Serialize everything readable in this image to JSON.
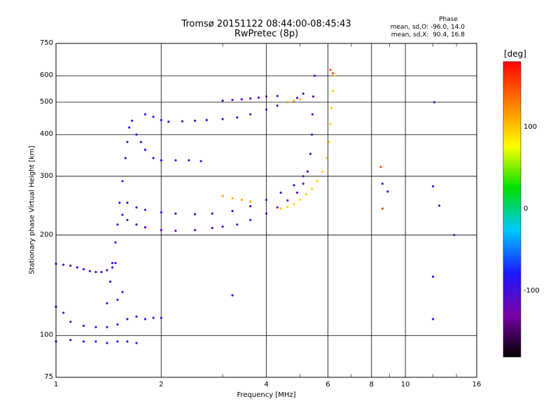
{
  "chart_data": {
    "type": "scatter",
    "title": "Tromsø 20151122 08:44:00-08:45:43",
    "subtitle": "RwPretec (8p)",
    "xlabel": "Frequency [MHz]",
    "ylabel": "Stationary phase Virtual Height [km]",
    "x_scale": "log",
    "y_scale": "log",
    "xlim": [
      1,
      16
    ],
    "ylim": [
      75,
      750
    ],
    "x_ticks": [
      1,
      2,
      4,
      6,
      8,
      10,
      16
    ],
    "x_tick_labels": [
      "1",
      "2",
      "4",
      "6",
      "8",
      "10",
      "16"
    ],
    "y_ticks": [
      75,
      100,
      200,
      300,
      400,
      500,
      600,
      750
    ],
    "y_tick_labels": [
      "75",
      "100",
      "200",
      "300",
      "400",
      "500",
      "600",
      "750"
    ],
    "grid": true,
    "colorbar": {
      "label": "[deg]",
      "range": [
        -180,
        180
      ],
      "ticks": [
        100,
        0,
        -100
      ],
      "tick_labels": [
        "100",
        "0",
        "-100"
      ],
      "colors": [
        "#000000",
        "#7a00a8",
        "#1a1aff",
        "#00c8ff",
        "#00e000",
        "#ffff00",
        "#ff8000",
        "#ff0000"
      ]
    },
    "stats": {
      "heading": "Phase",
      "o_mode": "mean, sd,O: -96.0, 14.0",
      "x_mode": "mean, sd,X:  90.4, 16.8"
    },
    "series": [
      {
        "phase": -100,
        "points": [
          [
            1.0,
            122
          ],
          [
            1.05,
            117
          ],
          [
            1.1,
            110
          ],
          [
            1.2,
            107
          ],
          [
            1.3,
            106
          ],
          [
            1.4,
            106
          ],
          [
            1.5,
            108
          ],
          [
            1.6,
            112
          ],
          [
            1.7,
            114
          ],
          [
            1.8,
            112
          ],
          [
            1.9,
            113
          ],
          [
            2.0,
            113
          ]
        ]
      },
      {
        "phase": -105,
        "points": [
          [
            1.0,
            164
          ],
          [
            1.05,
            163
          ],
          [
            1.1,
            162
          ],
          [
            1.15,
            160
          ],
          [
            1.2,
            158
          ],
          [
            1.25,
            156
          ],
          [
            1.3,
            155
          ],
          [
            1.35,
            155
          ],
          [
            1.4,
            157
          ],
          [
            1.45,
            160
          ],
          [
            1.48,
            165
          ]
        ]
      },
      {
        "phase": -100,
        "points": [
          [
            1.0,
            96
          ],
          [
            1.1,
            97
          ],
          [
            1.2,
            96
          ],
          [
            1.3,
            96
          ],
          [
            1.4,
            95
          ],
          [
            1.5,
            96
          ],
          [
            1.6,
            96
          ],
          [
            1.7,
            95
          ]
        ]
      },
      {
        "phase": -95,
        "points": [
          [
            1.4,
            125
          ],
          [
            1.43,
            145
          ],
          [
            1.45,
            165
          ],
          [
            1.48,
            190
          ],
          [
            1.5,
            215
          ],
          [
            1.52,
            250
          ],
          [
            1.55,
            290
          ],
          [
            1.58,
            340
          ],
          [
            1.6,
            380
          ],
          [
            1.62,
            420
          ],
          [
            1.65,
            440
          ],
          [
            1.7,
            400
          ],
          [
            1.75,
            380
          ],
          [
            1.8,
            360
          ],
          [
            1.9,
            340
          ],
          [
            2.0,
            335
          ],
          [
            2.2,
            335
          ],
          [
            2.4,
            335
          ],
          [
            2.6,
            333
          ]
        ]
      },
      {
        "phase": -110,
        "points": [
          [
            1.55,
            230
          ],
          [
            1.6,
            222
          ],
          [
            1.7,
            215
          ],
          [
            1.8,
            211
          ],
          [
            2.0,
            207
          ],
          [
            2.2,
            206
          ],
          [
            2.5,
            207
          ],
          [
            2.8,
            210
          ],
          [
            3.0,
            212
          ],
          [
            3.3,
            215
          ],
          [
            3.6,
            222
          ],
          [
            4.0,
            232
          ],
          [
            4.3,
            242
          ],
          [
            4.6,
            254
          ],
          [
            4.9,
            268
          ],
          [
            5.1,
            285
          ],
          [
            5.25,
            310
          ],
          [
            5.35,
            350
          ],
          [
            5.4,
            400
          ],
          [
            5.42,
            460
          ],
          [
            5.45,
            520
          ],
          [
            5.5,
            600
          ]
        ]
      },
      {
        "phase": -100,
        "points": [
          [
            1.6,
            250
          ],
          [
            1.7,
            242
          ],
          [
            1.8,
            238
          ],
          [
            2.0,
            234
          ],
          [
            2.2,
            232
          ],
          [
            2.5,
            231
          ],
          [
            2.8,
            232
          ],
          [
            3.2,
            236
          ],
          [
            3.6,
            244
          ],
          [
            4.0,
            255
          ],
          [
            4.4,
            268
          ],
          [
            4.8,
            282
          ],
          [
            5.1,
            300
          ]
        ]
      },
      {
        "phase": -100,
        "points": [
          [
            1.8,
            460
          ],
          [
            1.9,
            452
          ],
          [
            2.0,
            442
          ],
          [
            2.1,
            437
          ],
          [
            2.3,
            438
          ],
          [
            2.5,
            440
          ],
          [
            2.7,
            442
          ],
          [
            3.0,
            445
          ],
          [
            3.3,
            450
          ],
          [
            3.6,
            460
          ],
          [
            4.0,
            475
          ],
          [
            4.3,
            488
          ],
          [
            4.6,
            500
          ],
          [
            4.9,
            515
          ],
          [
            5.1,
            530
          ]
        ]
      },
      {
        "phase": -110,
        "points": [
          [
            3.0,
            505
          ],
          [
            3.2,
            508
          ],
          [
            3.4,
            510
          ],
          [
            3.6,
            513
          ],
          [
            3.8,
            516
          ],
          [
            4.0,
            520
          ],
          [
            4.3,
            522
          ]
        ]
      },
      {
        "phase": 95,
        "points": [
          [
            4.4,
            240
          ],
          [
            4.6,
            243
          ],
          [
            4.8,
            248
          ],
          [
            5.0,
            255
          ],
          [
            5.2,
            265
          ],
          [
            5.4,
            275
          ],
          [
            5.6,
            290
          ],
          [
            5.8,
            310
          ],
          [
            5.95,
            340
          ],
          [
            6.05,
            380
          ],
          [
            6.1,
            430
          ],
          [
            6.15,
            480
          ],
          [
            6.2,
            540
          ],
          [
            6.3,
            600
          ]
        ]
      },
      {
        "phase": 110,
        "points": [
          [
            4.6,
            500
          ],
          [
            4.8,
            505
          ],
          [
            5.0,
            510
          ],
          [
            3.0,
            262
          ],
          [
            3.2,
            258
          ],
          [
            3.4,
            255
          ],
          [
            3.6,
            252
          ]
        ]
      },
      {
        "phase": 150,
        "points": [
          [
            6.1,
            625
          ],
          [
            6.2,
            610
          ],
          [
            8.5,
            320
          ],
          [
            8.6,
            240
          ]
        ]
      },
      {
        "phase": -100,
        "points": [
          [
            8.6,
            285
          ],
          [
            8.9,
            270
          ],
          [
            12.0,
            280
          ],
          [
            12.5,
            245
          ],
          [
            12.1,
            500
          ],
          [
            13.8,
            200
          ],
          [
            12.0,
            150
          ],
          [
            12.0,
            112
          ],
          [
            1.5,
            128
          ],
          [
            1.55,
            135
          ],
          [
            3.2,
            132
          ]
        ]
      }
    ]
  }
}
